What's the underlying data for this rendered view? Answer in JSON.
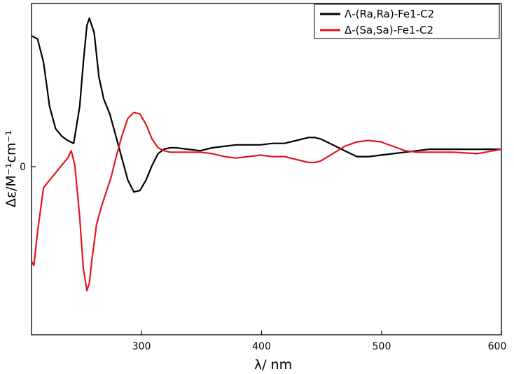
{
  "chart_data": {
    "type": "line",
    "title": "",
    "xlabel": "λ/ nm",
    "ylabel": "Δε/M⁻¹cm⁻¹",
    "xlim": [
      210,
      600
    ],
    "ylim": [
      -1.25,
      1.0
    ],
    "x_ticks": [
      300,
      400,
      500,
      600
    ],
    "y_ticks": [
      0
    ],
    "x_tick_labels": [
      "300",
      "400",
      "500",
      "600"
    ],
    "y_tick_labels": [
      "0"
    ],
    "grid": false,
    "legend_position": "top-right",
    "series": [
      {
        "name": "Λ-(Ra,Ra)-Fe1-C2",
        "color": "#000000",
        "x": [
          210,
          215,
          220,
          225,
          230,
          235,
          240,
          245,
          250,
          253,
          256,
          258,
          262,
          266,
          270,
          275,
          280,
          285,
          290,
          295,
          300,
          305,
          310,
          315,
          320,
          325,
          330,
          340,
          350,
          360,
          370,
          380,
          390,
          400,
          410,
          420,
          430,
          440,
          445,
          450,
          460,
          470,
          480,
          490,
          500,
          510,
          520,
          530,
          540,
          560,
          580,
          600
        ],
        "y": [
          0.78,
          0.76,
          0.6,
          0.3,
          0.15,
          0.1,
          0.07,
          0.05,
          0.3,
          0.6,
          0.85,
          0.9,
          0.8,
          0.5,
          0.35,
          0.25,
          0.1,
          -0.05,
          -0.2,
          -0.28,
          -0.27,
          -0.2,
          -0.1,
          -0.02,
          0.01,
          0.02,
          0.02,
          0.01,
          0.0,
          0.02,
          0.03,
          0.04,
          0.04,
          0.04,
          0.05,
          0.05,
          0.07,
          0.09,
          0.09,
          0.08,
          0.04,
          0.0,
          -0.04,
          -0.04,
          -0.03,
          -0.02,
          -0.01,
          0.0,
          0.01,
          0.01,
          0.01,
          0.01
        ]
      },
      {
        "name": "Δ-(Sa,Sa)-Fe1-C2",
        "color": "#e3161b",
        "x": [
          210,
          212,
          215,
          220,
          225,
          230,
          235,
          240,
          243,
          246,
          250,
          253,
          256,
          258,
          260,
          264,
          268,
          272,
          276,
          280,
          285,
          290,
          295,
          300,
          305,
          310,
          315,
          320,
          325,
          330,
          340,
          350,
          360,
          370,
          380,
          390,
          400,
          410,
          420,
          430,
          440,
          445,
          450,
          460,
          470,
          480,
          490,
          500,
          510,
          520,
          530,
          540,
          560,
          580,
          600
        ],
        "y": [
          -0.75,
          -0.78,
          -0.55,
          -0.25,
          -0.2,
          -0.15,
          -0.1,
          -0.05,
          0.0,
          -0.1,
          -0.45,
          -0.8,
          -0.95,
          -0.9,
          -0.75,
          -0.5,
          -0.38,
          -0.28,
          -0.18,
          -0.05,
          0.1,
          0.22,
          0.26,
          0.25,
          0.18,
          0.08,
          0.02,
          0.0,
          -0.01,
          -0.01,
          -0.01,
          -0.01,
          -0.02,
          -0.04,
          -0.05,
          -0.04,
          -0.03,
          -0.04,
          -0.04,
          -0.06,
          -0.08,
          -0.08,
          -0.07,
          -0.02,
          0.03,
          0.06,
          0.07,
          0.06,
          0.03,
          0.0,
          -0.01,
          -0.01,
          -0.01,
          -0.02,
          0.01
        ]
      }
    ]
  }
}
